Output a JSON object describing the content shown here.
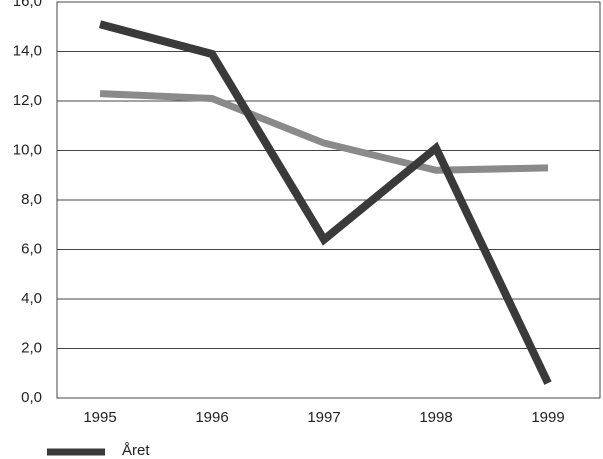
{
  "chart_data": {
    "type": "line",
    "categories": [
      "1995",
      "1996",
      "1997",
      "1998",
      "1999"
    ],
    "series": [
      {
        "name": "Året",
        "color": "#3a3a3a",
        "values": [
          15.1,
          13.9,
          6.4,
          10.1,
          0.6
        ]
      },
      {
        "color": "#8a8a8a",
        "values": [
          12.3,
          12.1,
          10.3,
          9.2,
          9.3
        ]
      }
    ],
    "ylim": [
      0,
      16
    ],
    "yticks": [
      {
        "value": 0,
        "label": "0,0"
      },
      {
        "value": 2,
        "label": "2,0"
      },
      {
        "value": 4,
        "label": "4,0"
      },
      {
        "value": 6,
        "label": "6,0"
      },
      {
        "value": 8,
        "label": "8,0"
      },
      {
        "value": 10,
        "label": "10,0"
      },
      {
        "value": 12,
        "label": "12,0"
      },
      {
        "value": 14,
        "label": "14,0"
      },
      {
        "value": 16,
        "label": "16,0"
      }
    ],
    "grid": true
  }
}
